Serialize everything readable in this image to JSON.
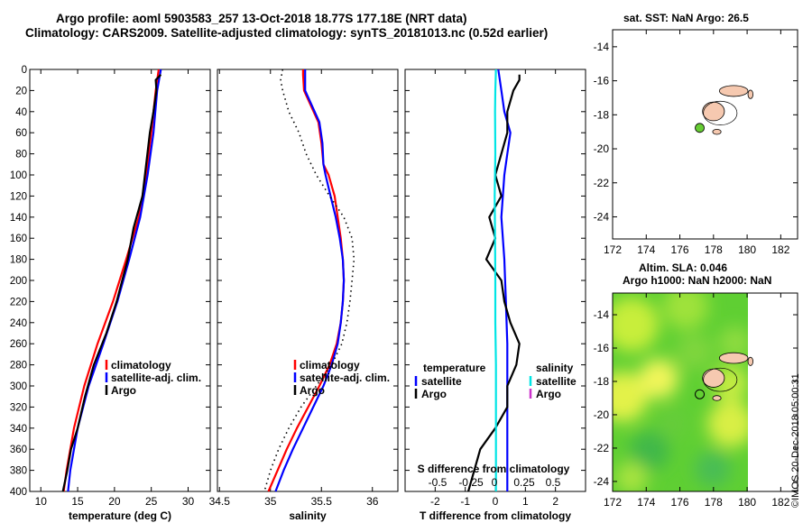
{
  "header": {
    "title_line1": "Argo profile: aoml 5903583_257 13-Oct-2018 18.77S 177.18E (NRT data)",
    "title_line2": "Climatology: CARS2009. Satellite-adjusted climatology: synTS_20181013.nc (0.52d earlier)"
  },
  "map_top": {
    "title": "sat. SST: NaN Argo: 26.5"
  },
  "map_bottom": {
    "title_line1": "Altim. SLA: 0.046",
    "title_line2": "Argo h1000: NaN h2000: NaN"
  },
  "stamp": "©IMOS 20-Dec-2018 05:00:31",
  "colors": {
    "climatology": "#ff0000",
    "satellite": "#0000ff",
    "argo": "#000000",
    "sal_satellite": "#00e5e5",
    "sal_argo": "#cc33cc",
    "land": "#f6c9b0",
    "argo_marker": "#66cc33"
  },
  "chart_data": [
    {
      "type": "line",
      "name": "temperature",
      "xlabel": "temperature (deg C)",
      "ylabel": "",
      "xlim": [
        8.5,
        33
      ],
      "ylim": [
        400,
        0
      ],
      "xticks": [
        10,
        15,
        20,
        25,
        30
      ],
      "yticks": [
        0,
        20,
        40,
        60,
        80,
        100,
        120,
        140,
        160,
        180,
        200,
        220,
        240,
        260,
        280,
        300,
        320,
        340,
        360,
        380,
        400
      ],
      "legend": [
        "climatology",
        "satellite-adj. clim.",
        "Argo"
      ],
      "series": [
        {
          "name": "climatology",
          "color": "#ff0000",
          "depth": [
            0,
            20,
            60,
            100,
            140,
            180,
            220,
            260,
            300,
            340,
            380,
            400
          ],
          "values": [
            26.0,
            25.6,
            25.0,
            24.3,
            23.3,
            21.6,
            19.8,
            17.7,
            15.9,
            14.5,
            13.5,
            13.1
          ]
        },
        {
          "name": "satellite-adj. clim.",
          "color": "#0000ff",
          "depth": [
            0,
            20,
            60,
            100,
            140,
            180,
            220,
            260,
            300,
            340,
            380,
            400
          ],
          "values": [
            26.3,
            25.8,
            25.3,
            24.5,
            23.5,
            22.0,
            20.4,
            18.5,
            16.5,
            15.0,
            14.0,
            13.7
          ]
        },
        {
          "name": "Argo",
          "color": "#000000",
          "depth": [
            5,
            10,
            20,
            40,
            60,
            90,
            120,
            150,
            180,
            220,
            250,
            280,
            310,
            340,
            360,
            380,
            400
          ],
          "values": [
            26.3,
            25.6,
            25.7,
            25.3,
            24.8,
            24.3,
            23.8,
            22.6,
            21.8,
            20.3,
            18.9,
            17.2,
            16.0,
            15.0,
            14.1,
            13.6,
            13.0
          ]
        }
      ]
    },
    {
      "type": "line",
      "name": "salinity",
      "xlabel": "salinity",
      "ylabel": "",
      "xlim": [
        34.48,
        36.25
      ],
      "ylim": [
        400,
        0
      ],
      "xticks": [
        34.5,
        35,
        35.5,
        36
      ],
      "xtick_labels": [
        "34.5",
        "35",
        "35.5",
        "36"
      ],
      "legend": [
        "climatology",
        "satellite-adj. clim.",
        "Argo"
      ],
      "series": [
        {
          "name": "climatology",
          "color": "#ff0000",
          "depth": [
            0,
            5,
            20,
            50,
            70,
            90,
            100,
            120,
            140,
            160,
            180,
            200,
            220,
            240,
            260,
            280,
            300,
            320,
            340,
            360,
            380,
            400
          ],
          "values": [
            35.32,
            35.32,
            35.33,
            35.47,
            35.5,
            35.52,
            35.57,
            35.63,
            35.66,
            35.69,
            35.71,
            35.72,
            35.71,
            35.69,
            35.65,
            35.58,
            35.48,
            35.37,
            35.26,
            35.16,
            35.07,
            34.98
          ]
        },
        {
          "name": "satellite-adj. clim.",
          "color": "#0000ff",
          "depth": [
            0,
            5,
            20,
            50,
            70,
            90,
            100,
            120,
            140,
            160,
            180,
            200,
            220,
            240,
            260,
            280,
            300,
            320,
            340,
            360,
            380,
            400
          ],
          "values": [
            35.34,
            35.34,
            35.34,
            35.48,
            35.51,
            35.52,
            35.54,
            35.59,
            35.64,
            35.68,
            35.71,
            35.72,
            35.71,
            35.69,
            35.66,
            35.6,
            35.52,
            35.42,
            35.32,
            35.22,
            35.13,
            35.05
          ]
        },
        {
          "name": "Argo",
          "color": "#000000",
          "dotted": true,
          "depth": [
            0,
            10,
            20,
            40,
            60,
            80,
            100,
            120,
            140,
            160,
            180,
            200,
            220,
            240,
            260,
            280,
            300,
            320,
            340,
            360,
            380,
            400
          ],
          "values": [
            35.12,
            35.1,
            35.12,
            35.18,
            35.28,
            35.35,
            35.45,
            35.58,
            35.72,
            35.8,
            35.82,
            35.8,
            35.78,
            35.75,
            35.7,
            35.6,
            35.45,
            35.3,
            35.18,
            35.08,
            35.0,
            34.94
          ]
        }
      ]
    },
    {
      "type": "line",
      "name": "difference",
      "xlabel": "T difference from climatology",
      "xlabel_top": "S difference from climatology",
      "xlim": [
        -3,
        3
      ],
      "ylim": [
        400,
        0
      ],
      "xticks": [
        -2,
        -1,
        0,
        1,
        2
      ],
      "xtick_labels": [
        "-2",
        "-1",
        "0",
        "1",
        "2"
      ],
      "sticks": [
        "-0.5",
        "-0.25",
        "0",
        "0.25",
        "0.5"
      ],
      "legend_temperature": {
        "title": "temperature",
        "items": [
          "satellite",
          "Argo"
        ]
      },
      "legend_salinity": {
        "title": "salinity",
        "items": [
          "satellite",
          "Argo"
        ]
      },
      "series": [
        {
          "name": "T satellite",
          "color": "#0000ff",
          "depth": [
            0,
            20,
            40,
            60,
            80,
            100,
            140,
            180,
            220,
            260,
            300,
            340,
            380,
            400
          ],
          "values": [
            0.1,
            0.2,
            0.3,
            0.5,
            0.4,
            0.3,
            0.2,
            0.3,
            0.35,
            0.4,
            0.4,
            0.4,
            0.4,
            0.4
          ]
        },
        {
          "name": "T Argo",
          "color": "#000000",
          "depth": [
            5,
            10,
            20,
            40,
            60,
            80,
            100,
            120,
            140,
            160,
            180,
            200,
            220,
            240,
            260,
            280,
            300,
            320,
            340,
            360,
            380,
            400
          ],
          "values": [
            0.8,
            0.8,
            0.6,
            0.4,
            0.4,
            0.2,
            0.0,
            0.2,
            -0.2,
            0.0,
            -0.3,
            0.2,
            0.3,
            0.5,
            0.8,
            0.7,
            0.4,
            0.4,
            0.0,
            -0.5,
            -0.7,
            -0.9
          ]
        },
        {
          "name": "S satellite",
          "color": "#00e5e5",
          "depth": [
            0,
            20,
            40,
            80,
            120,
            160,
            200,
            240,
            280,
            320,
            360,
            400
          ],
          "values": [
            0.02,
            0.0,
            -0.01,
            0.0,
            -0.02,
            -0.01,
            0.0,
            0.0,
            0.02,
            0.02,
            0.02,
            0.02
          ]
        },
        {
          "name": "S Argo",
          "color": "#cc33cc",
          "depth": [],
          "values": []
        }
      ]
    },
    {
      "type": "scatter",
      "name": "map-sst",
      "title": "sat. SST: NaN Argo: 26.5",
      "xlim": [
        172,
        183
      ],
      "ylim": [
        -25.3,
        -13
      ],
      "xticks": [
        172,
        174,
        176,
        178,
        180,
        182
      ],
      "yticks": [
        -14,
        -16,
        -18,
        -20,
        -22,
        -24
      ],
      "points": [
        {
          "lon": 177.18,
          "lat": -18.77,
          "label": "Argo"
        }
      ]
    },
    {
      "type": "heatmap",
      "name": "map-sla",
      "title": "Altim. SLA: 0.046",
      "xlim": [
        172,
        183
      ],
      "ylim": [
        -24.6,
        -12.7
      ],
      "xticks": [
        172,
        174,
        176,
        178,
        180,
        182
      ],
      "yticks": [
        -14,
        -16,
        -18,
        -20,
        -22,
        -24
      ],
      "points": [
        {
          "lon": 177.18,
          "lat": -18.77,
          "label": "Argo"
        }
      ]
    }
  ]
}
